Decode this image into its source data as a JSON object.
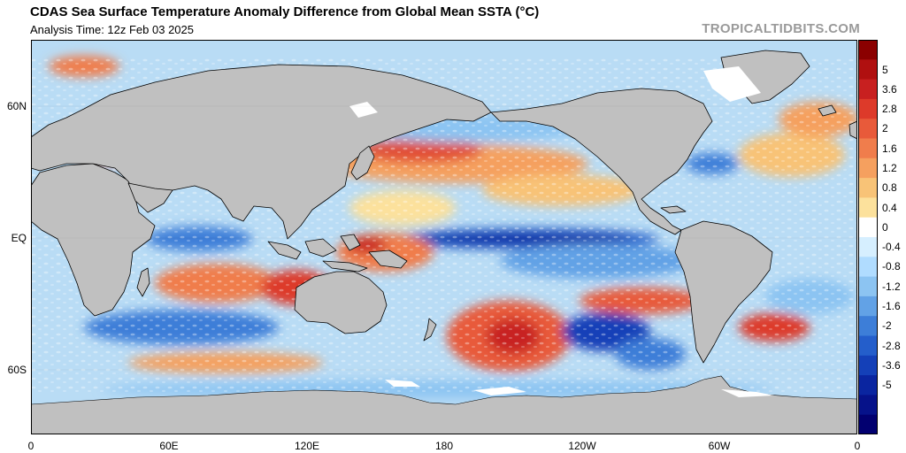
{
  "header": {
    "title": "CDAS Sea Surface Temperature Anomaly Difference from Global Mean SSTA (°C)",
    "subtitle": "Analysis Time: 12z Feb 03 2025",
    "watermark": "TROPICALTIDBITS.COM"
  },
  "axes": {
    "lat_labels": [
      "60N",
      "EQ",
      "60S"
    ],
    "lon_labels": [
      "0",
      "60E",
      "120E",
      "180",
      "120W",
      "60W",
      "0"
    ]
  },
  "colorbar": {
    "labels": [
      "5",
      "3.6",
      "2.8",
      "2",
      "1.6",
      "1.2",
      "0.8",
      "0.4",
      "0",
      "-0.4",
      "-0.8",
      "-1.2",
      "-1.6",
      "-2",
      "-2.8",
      "-3.6",
      "-5"
    ],
    "colors": [
      "#8b0000",
      "#b01010",
      "#c82020",
      "#dd3a2a",
      "#e85a3a",
      "#f07d4c",
      "#f5a05f",
      "#f8c377",
      "#fce19c",
      "#ffffff",
      "#d6efff",
      "#b0dcff",
      "#8cc4f2",
      "#62a2e6",
      "#3d7ed8",
      "#245ecb",
      "#1440b8",
      "#0a25a0",
      "#06128a",
      "#020070"
    ]
  },
  "map": {
    "land_color": "#c0c0c0",
    "ice_color": "#ffffff",
    "border_color": "#000000"
  }
}
